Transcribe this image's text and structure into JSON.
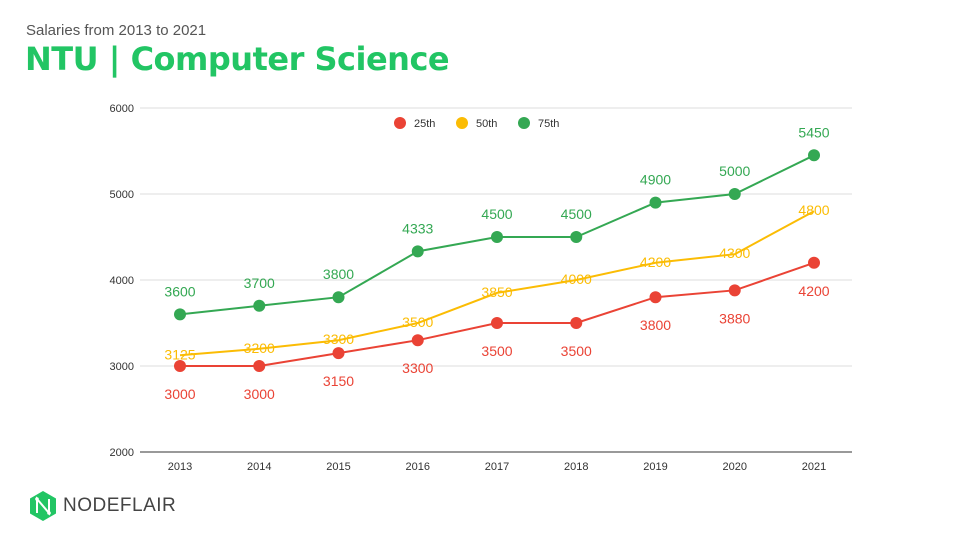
{
  "header": {
    "subtitle": "Salaries from 2013 to 2021",
    "title": "NTU | Computer Science"
  },
  "logo": {
    "text": "NODEFLAIR",
    "color": "#22c564"
  },
  "chart_data": {
    "type": "line",
    "categories": [
      "2013",
      "2014",
      "2015",
      "2016",
      "2017",
      "2018",
      "2019",
      "2020",
      "2021"
    ],
    "ylim": [
      2000,
      6000
    ],
    "yticks": [
      2000,
      3000,
      4000,
      5000,
      6000
    ],
    "grid": true,
    "legend_position": "top",
    "series": [
      {
        "name": "25th",
        "color": "#ea4335",
        "markers": true,
        "label_pos": "below",
        "values": [
          3000,
          3000,
          3150,
          3300,
          3500,
          3500,
          3800,
          3880,
          4200
        ]
      },
      {
        "name": "50th",
        "color": "#fbbc04",
        "markers": false,
        "label_pos": "center",
        "values": [
          3125,
          3200,
          3300,
          3500,
          3850,
          4000,
          4200,
          4300,
          4800
        ]
      },
      {
        "name": "75th",
        "color": "#34a853",
        "markers": true,
        "label_pos": "above",
        "values": [
          3600,
          3700,
          3800,
          4333,
          4500,
          4500,
          4900,
          5000,
          5450
        ]
      }
    ]
  }
}
